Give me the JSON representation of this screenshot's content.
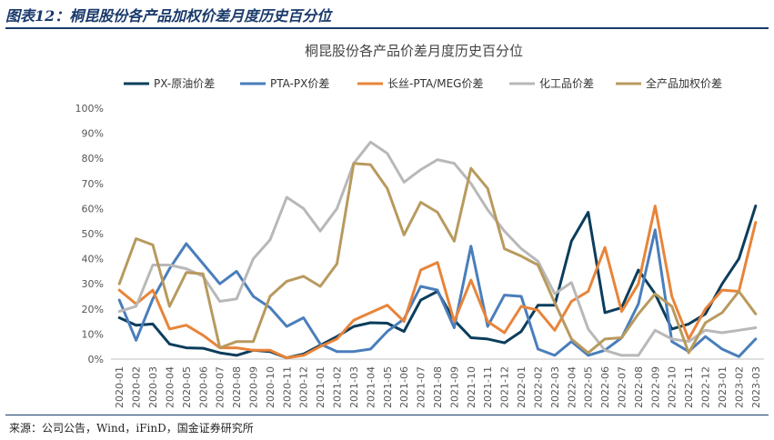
{
  "figure": {
    "label": "图表12：桐昆股份各产品加权价差月度历史百分位",
    "source": "来源：公司公告，Wind，iFinD，国金证券研究所"
  },
  "chart_data": {
    "type": "line",
    "title": "桐昆股份各产品价差月度历史百分位",
    "xlabel": "",
    "ylabel": "",
    "ylim": [
      0,
      100
    ],
    "yticks": [
      "0%",
      "10%",
      "20%",
      "30%",
      "40%",
      "50%",
      "60%",
      "70%",
      "80%",
      "90%",
      "100%"
    ],
    "legend_position": "top",
    "categories": [
      "2020-01",
      "2020-02",
      "2020-03",
      "2020-04",
      "2020-05",
      "2020-06",
      "2020-07",
      "2020-08",
      "2020-09",
      "2020-10",
      "2020-11",
      "2020-12",
      "2021-01",
      "2021-02",
      "2021-03",
      "2021-04",
      "2021-05",
      "2021-06",
      "2021-07",
      "2021-08",
      "2021-09",
      "2021-10",
      "2021-11",
      "2021-12",
      "2022-01",
      "2022-02",
      "2022-03",
      "2022-04",
      "2022-05",
      "2022-06",
      "2022-07",
      "2022-08",
      "2022-09",
      "2022-10",
      "2022-11",
      "2022-12",
      "2023-01",
      "2023-02",
      "2023-03"
    ],
    "series": [
      {
        "name": "PX-原油价差",
        "color": "#0b3d5c",
        "values": [
          16.5,
          13.5,
          14,
          6,
          4.5,
          4.3,
          2.5,
          1.5,
          3.5,
          3,
          0.5,
          2,
          5.5,
          9,
          13,
          14.5,
          14.3,
          11,
          23.5,
          27,
          15.5,
          8.5,
          8,
          6.5,
          11,
          21.5,
          21.5,
          47,
          58.5,
          18.5,
          20.5,
          35.5,
          26,
          12,
          14,
          18,
          30,
          40,
          61
        ]
      },
      {
        "name": "PTA-PX价差",
        "color": "#4a7ebb",
        "values": [
          23.5,
          7.5,
          24,
          36,
          46,
          38,
          30,
          35,
          25,
          20.5,
          13,
          16.5,
          6,
          3,
          3,
          4,
          11,
          16,
          29,
          27.5,
          12.5,
          45,
          13,
          25.5,
          25,
          4,
          1.5,
          7,
          1.5,
          3.5,
          8.5,
          22,
          51.5,
          7,
          3,
          9,
          4,
          1,
          8
        ]
      },
      {
        "name": "长丝-PTA/MEG价差",
        "color": "#e8843a",
        "values": [
          27.5,
          22,
          27.5,
          12,
          13.5,
          9.5,
          4.5,
          4.5,
          3.5,
          3.5,
          0.5,
          1.5,
          5,
          8,
          15.5,
          18.5,
          21.5,
          15,
          35.5,
          38.5,
          15,
          31.5,
          15,
          10.5,
          21,
          19.5,
          11.5,
          23,
          27,
          44.5,
          19,
          30,
          61,
          25,
          8,
          20,
          27.5,
          27,
          54.5
        ]
      },
      {
        "name": "化工品价差",
        "color": "#b8b8b8",
        "values": [
          19,
          21,
          37.5,
          37.5,
          36,
          33,
          23,
          24,
          40,
          47.5,
          64.5,
          60,
          51,
          60,
          78,
          86.5,
          82,
          70.5,
          75.5,
          79.5,
          78,
          70,
          59.5,
          51,
          44,
          39,
          26,
          30.5,
          12,
          3.5,
          1.5,
          1.5,
          11.5,
          8,
          7,
          11.5,
          10.5,
          11.5,
          12.5
        ]
      },
      {
        "name": "全产品加权价差",
        "color": "#b89a5e",
        "values": [
          30,
          48,
          45.5,
          21,
          34.5,
          34,
          4.5,
          7,
          7,
          25,
          31,
          33,
          29,
          38,
          78,
          77.5,
          68,
          49.5,
          62.5,
          58.5,
          47,
          76,
          68,
          44,
          41,
          37.5,
          22.5,
          8,
          2.5,
          8,
          8.5,
          18,
          26,
          21,
          2.5,
          14.5,
          18.5,
          27,
          18
        ]
      }
    ]
  }
}
